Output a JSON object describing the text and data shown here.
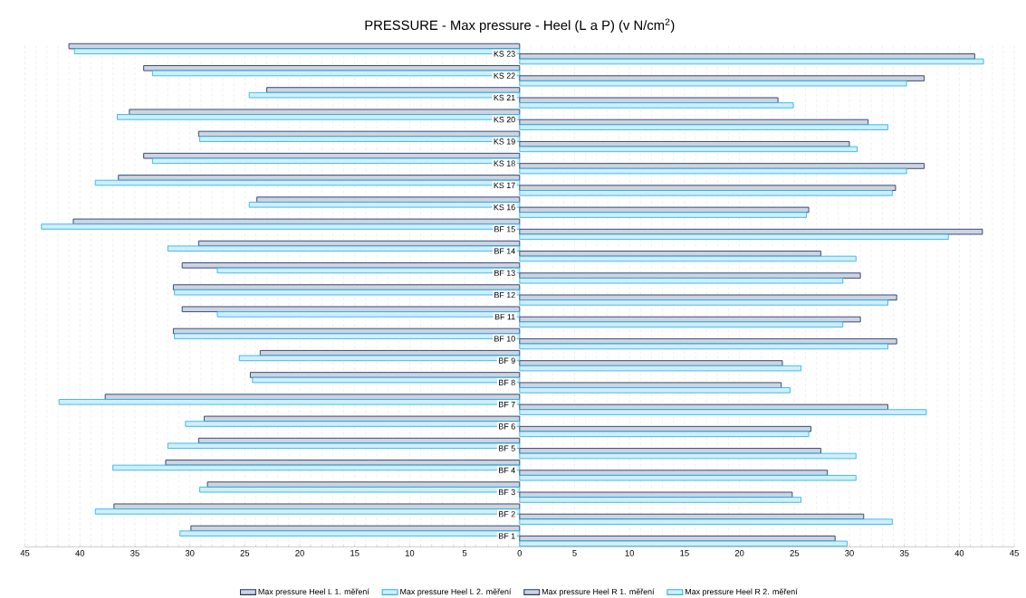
{
  "chart_data": {
    "type": "bar",
    "orientation": "horizontal",
    "title": "PRESSURE - Max pressure - Heel (L a P) (v N/cm$^{2}$)",
    "categories": [
      "KS 23",
      "KS 22",
      "KS 21",
      "KS 20",
      "KS 19",
      "KS 18",
      "KS 17",
      "KS 16",
      "BF 15",
      "BF 14",
      "BF 13",
      "BF 12",
      "BF 11",
      "BF 10",
      "BF 9",
      "BF 8",
      "BF 7",
      "BF 6",
      "BF 5",
      "BF 4",
      "BF 3",
      "BF 2",
      "BF 1"
    ],
    "series": [
      {
        "name": "Max pressure Heel L 1. měření",
        "color": "#1f3a6e",
        "values": [
          -41.0,
          -34.2,
          -23.0,
          -35.5,
          -29.2,
          -34.2,
          -36.5,
          -23.9,
          -40.6,
          -29.2,
          -30.7,
          -31.5,
          -30.7,
          -31.5,
          -23.6,
          -24.5,
          -37.7,
          -28.7,
          -29.2,
          -32.2,
          -28.4,
          -36.9,
          -29.9
        ]
      },
      {
        "name": "Max pressure Heel L 2. měření",
        "color": "#2ab4ea",
        "values": [
          -40.5,
          -33.4,
          -24.6,
          -36.6,
          -29.1,
          -33.4,
          -38.6,
          -24.6,
          -43.5,
          -32.0,
          -27.5,
          -31.4,
          -27.5,
          -31.4,
          -25.5,
          -24.3,
          -41.9,
          -30.4,
          -32.0,
          -37.0,
          -29.1,
          -38.6,
          -30.9
        ]
      },
      {
        "name": "Max pressure Heel R 1. měření",
        "color": "#1f3a6e",
        "values": [
          41.4,
          36.8,
          23.5,
          31.7,
          30.0,
          36.8,
          34.2,
          26.3,
          42.1,
          27.4,
          31.0,
          34.3,
          31.0,
          34.3,
          23.9,
          23.8,
          33.5,
          26.5,
          27.4,
          28.0,
          24.8,
          31.3,
          28.7
        ]
      },
      {
        "name": "Max pressure Heel R 2. měření",
        "color": "#2ab4ea",
        "values": [
          42.2,
          35.2,
          24.9,
          33.5,
          30.7,
          35.2,
          33.9,
          26.1,
          39.0,
          30.6,
          29.4,
          33.5,
          29.4,
          33.5,
          25.6,
          24.6,
          37.0,
          26.3,
          30.6,
          30.6,
          25.6,
          33.9,
          29.8
        ]
      }
    ],
    "xlim": [
      -45,
      45
    ],
    "xticks": [
      {
        "value": -45,
        "label": "45"
      },
      {
        "value": -40,
        "label": "40"
      },
      {
        "value": -35,
        "label": "35"
      },
      {
        "value": -30,
        "label": "30"
      },
      {
        "value": -25,
        "label": "25"
      },
      {
        "value": -20,
        "label": "20"
      },
      {
        "value": -15,
        "label": "15"
      },
      {
        "value": -10,
        "label": "10"
      },
      {
        "value": -5,
        "label": "5"
      },
      0,
      5,
      10,
      15,
      20,
      25,
      30,
      35,
      40,
      45
    ],
    "grid": true,
    "legend": "bottom"
  }
}
